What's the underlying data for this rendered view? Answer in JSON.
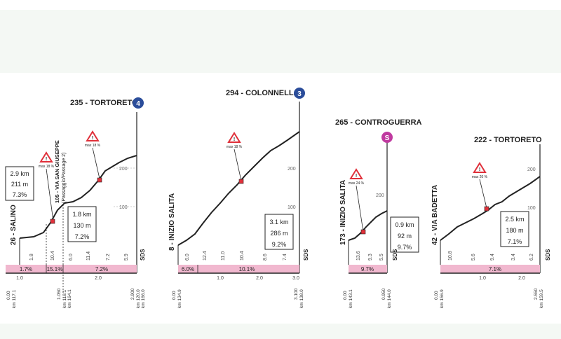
{
  "profiles": [
    {
      "summit": {
        "name": "235 - TORTORETO",
        "badge": "4"
      },
      "start_label": "26 - SALINO",
      "max_label": "max 18 %",
      "max2_label": "max 18 %",
      "via_label_1": "105 - VIA SAN GIUSEPPE",
      "via_label_2": "(Passaggio/Passage 2)",
      "stats_total": [
        "2.9 km",
        "211 m",
        "7.3%"
      ],
      "stats_last": [
        "1.8 km",
        "130 m",
        "7.2%"
      ],
      "altitude_ticks": [
        "200",
        "100"
      ],
      "segment_gradients": [
        "1.8",
        "10.4",
        "6.0",
        "11.4",
        "7.2",
        "5.9"
      ],
      "grade_bands": [
        "1.7%",
        "15.1%",
        "7.2%"
      ],
      "km_ticks": [
        "0.00",
        "1.0",
        "1.050",
        "2.0",
        "2.900"
      ],
      "km_small_left": "km 117.1",
      "km_small_mid": [
        "km 118.1",
        "km 164.1"
      ],
      "km_small_right": [
        "km 120.0",
        "km 166.0"
      ],
      "sds": "SDS"
    },
    {
      "summit": {
        "name": "294 - COLONNELLA",
        "badge": "3"
      },
      "start_label": "8 - INIZIO SALITA",
      "max_label": "max 18 %",
      "stats": [
        "3.1 km",
        "286 m",
        "9.2%"
      ],
      "altitude_ticks": [
        "200",
        "100"
      ],
      "segment_gradients": [
        "6.0",
        "12.4",
        "11.0",
        "10.4",
        "8.6",
        "7.4"
      ],
      "grade_bands": [
        "6.0%",
        "10.1%"
      ],
      "km_ticks": [
        "0.00",
        "1.0",
        "2.0",
        "3.0",
        "3.100"
      ],
      "km_small_left": "km 134.9",
      "km_small_right": "km 138.0",
      "sds": "SDS"
    },
    {
      "summit": {
        "name": "265 - CONTROGUERRA",
        "badge": "S"
      },
      "start_label": "173 - INIZIO SALITA",
      "max_label": "max 24 %",
      "stats": [
        "0.9 km",
        "92 m",
        "9.7%"
      ],
      "altitude_ticks": [
        "200"
      ],
      "segment_gradients": [
        "13.6",
        "9.3",
        "5.5"
      ],
      "grade_bands": [
        "9.7%"
      ],
      "km_ticks": [
        "0.00",
        "0.950"
      ],
      "km_small_left": "km 143.1",
      "km_small_right": "km 144.0",
      "sds": "SDS"
    },
    {
      "summit": {
        "name": "222 - TORTORETO"
      },
      "start_label": "42 - VIA BADETTA",
      "max_label": "max 20 %",
      "stats": [
        "2.5 km",
        "180 m",
        "7.1%"
      ],
      "altitude_ticks": [
        "200",
        "100"
      ],
      "segment_gradients": [
        "10.8",
        "5.6",
        "9.4",
        "3.4",
        "6.2"
      ],
      "grade_bands": [
        "7.1%"
      ],
      "km_ticks": [
        "0.00",
        "1.0",
        "2.0",
        "2.550"
      ],
      "km_small_left": "km 156.9",
      "km_small_right": "km 159.5",
      "sds": "SDS"
    }
  ],
  "colors": {
    "band_fill": "#f1b8cf",
    "band_text": "#2a1a24",
    "line": "#222222",
    "marker": "#e0303a",
    "badge_blue": "#2b4d9a",
    "badge_purple": "#c03aa0"
  }
}
